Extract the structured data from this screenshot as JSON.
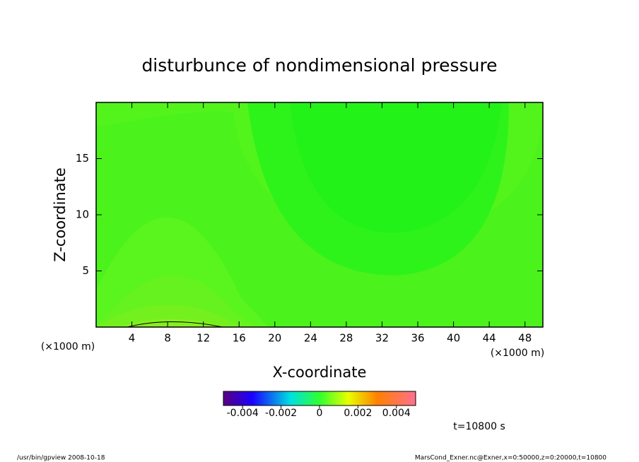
{
  "chart_data": {
    "type": "contour",
    "title": "disturbunce of nondimensional pressure",
    "x_label": "X-coordinate",
    "y_label": "Z-coordinate",
    "x_unit": "(×1000 m)",
    "y_unit": "(×1000 m)",
    "xlim": [
      0,
      50
    ],
    "ylim": [
      0,
      20
    ],
    "xticks": [
      4,
      8,
      12,
      16,
      20,
      24,
      28,
      32,
      36,
      40,
      44,
      48
    ],
    "yticks": [
      5,
      10,
      15
    ],
    "colorbar": {
      "lim": [
        -0.005,
        0.005
      ],
      "ticks": [
        -0.004,
        -0.002,
        0,
        0.002,
        0.004
      ]
    },
    "time_label": "t=10800 s",
    "footer_left": "/usr/bin/gpview  2008-10-18",
    "footer_right": "MarsCond_Exner.nc@Exner,x=0:50000,z=0:20000,t=10800"
  }
}
